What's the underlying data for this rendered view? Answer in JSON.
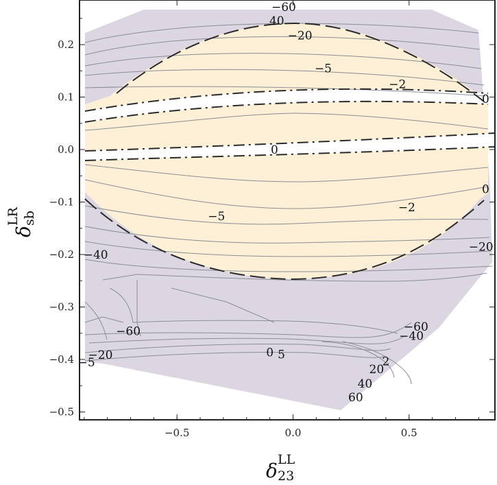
{
  "chart_data": {
    "type": "contour",
    "xlabel": {
      "symbol": "δ",
      "sup": "LL",
      "sub": "23"
    },
    "ylabel": {
      "symbol": "δ",
      "sup": "LR",
      "sub": "sb"
    },
    "xlim": [
      -0.92,
      0.87
    ],
    "ylim": [
      -0.515,
      0.285
    ],
    "x_ticks": [
      -0.5,
      0.0,
      0.5
    ],
    "x_tick_labels": [
      "−0.5",
      "0.0",
      "0.5"
    ],
    "y_ticks": [
      -0.5,
      -0.4,
      -0.3,
      -0.2,
      -0.1,
      0.0,
      0.1,
      0.2
    ],
    "y_tick_labels": [
      "−0.5",
      "−0.4",
      "−0.3",
      "−0.2",
      "−0.1",
      "0.0",
      "0.1",
      "0.2"
    ],
    "colors": {
      "frame": "#222222",
      "region_outer": "#dcd6e2",
      "region_inner": "#fdf0d6",
      "gap": "#ffffff",
      "contour_line": "#8c8c95"
    },
    "contour_labels": [
      {
        "text": "−60",
        "x": -0.04,
        "y": 0.272
      },
      {
        "text": "40",
        "x": -0.07,
        "y": 0.246
      },
      {
        "text": "−20",
        "x": 0.03,
        "y": 0.218
      },
      {
        "text": "−5",
        "x": 0.13,
        "y": 0.155
      },
      {
        "text": "−2",
        "x": 0.45,
        "y": 0.125
      },
      {
        "text": "0",
        "x": 0.83,
        "y": 0.097
      },
      {
        "text": "0",
        "x": -0.08,
        "y": 0.0
      },
      {
        "text": "0",
        "x": 0.83,
        "y": -0.075
      },
      {
        "text": "−5",
        "x": -0.33,
        "y": -0.127
      },
      {
        "text": "−2",
        "x": 0.49,
        "y": -0.11
      },
      {
        "text": "−40",
        "x": -0.85,
        "y": -0.2
      },
      {
        "text": "−20",
        "x": 0.81,
        "y": -0.185
      },
      {
        "text": "−60",
        "x": -0.71,
        "y": -0.346
      },
      {
        "text": "−60",
        "x": 0.53,
        "y": -0.337
      },
      {
        "text": "−40",
        "x": 0.51,
        "y": -0.355
      },
      {
        "text": "0",
        "x": -0.1,
        "y": -0.386
      },
      {
        "text": "5",
        "x": -0.05,
        "y": -0.39
      },
      {
        "text": "−20",
        "x": -0.83,
        "y": -0.391
      },
      {
        "text": "−5",
        "x": -0.89,
        "y": -0.405
      },
      {
        "text": "2",
        "x": 0.4,
        "y": -0.403
      },
      {
        "text": "20",
        "x": 0.36,
        "y": -0.418
      },
      {
        "text": "40",
        "x": 0.31,
        "y": -0.446
      },
      {
        "text": "60",
        "x": 0.27,
        "y": -0.472
      }
    ]
  }
}
